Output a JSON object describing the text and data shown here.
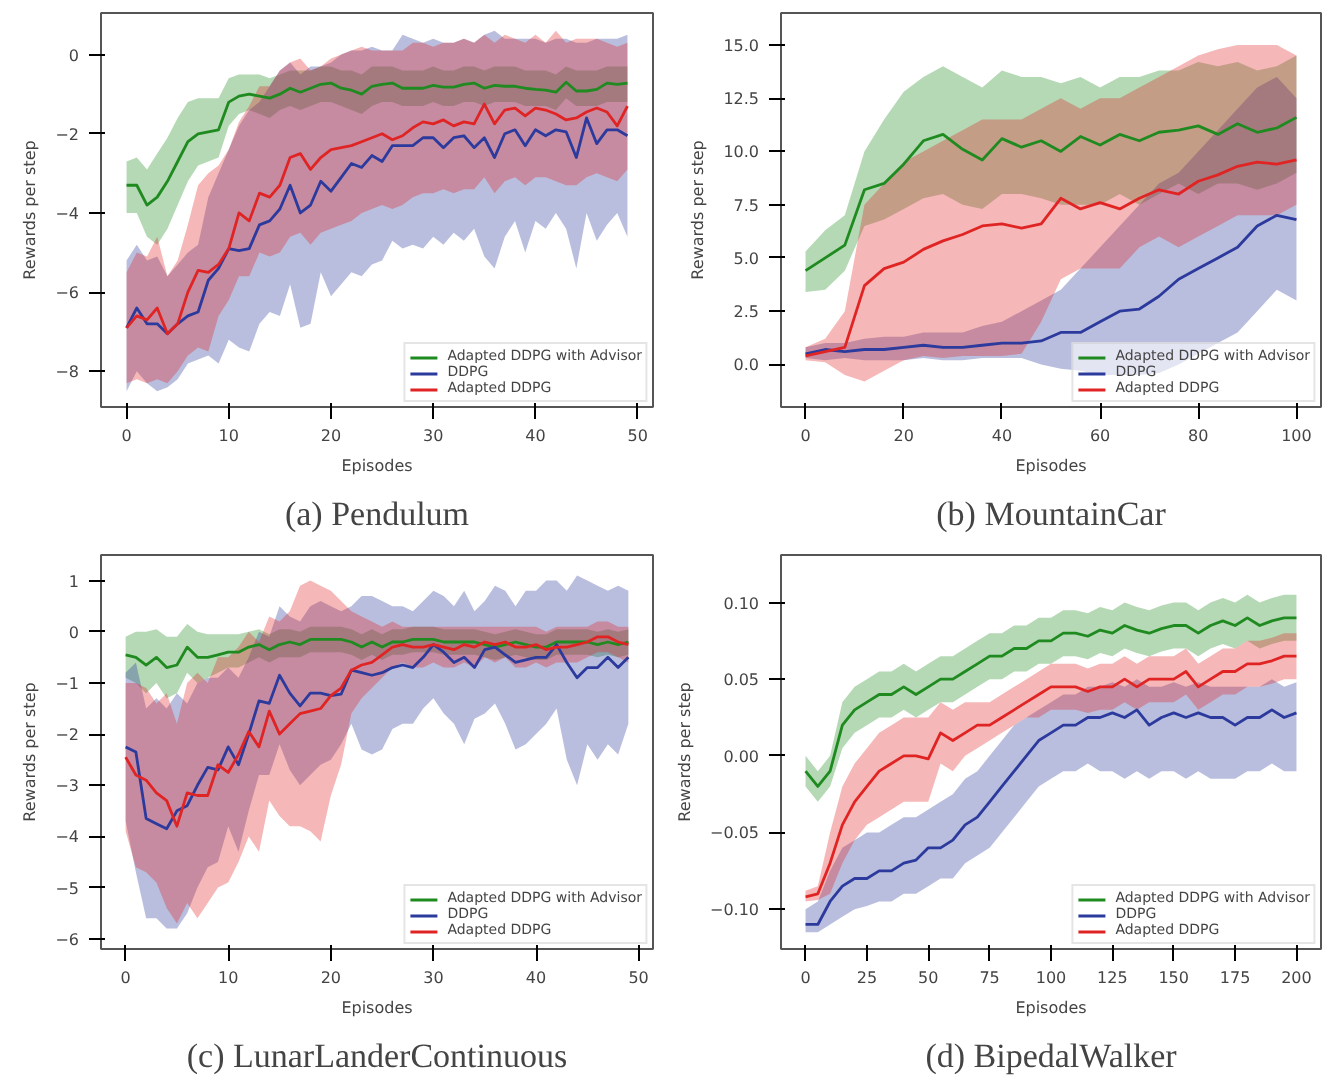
{
  "chart_data": [
    {
      "type": "line",
      "title": "(a) Pendulum",
      "xlabel": "Episodes",
      "ylabel": "Rewards per step",
      "legend": "bottom right",
      "grid": false,
      "x": [
        0,
        1,
        2,
        3,
        4,
        5,
        6,
        7,
        8,
        9,
        10,
        11,
        12,
        13,
        14,
        15,
        16,
        17,
        18,
        19,
        20,
        21,
        22,
        23,
        24,
        25,
        26,
        27,
        28,
        29,
        30,
        31,
        32,
        33,
        34,
        35,
        36,
        37,
        38,
        39,
        40,
        41,
        42,
        43,
        44,
        45,
        46,
        47,
        48,
        49
      ],
      "xlim": [
        -2.5,
        51.5
      ],
      "ylim": [
        -8.9,
        1.05
      ],
      "xticks": [
        0,
        10,
        20,
        30,
        40,
        50
      ],
      "yticks": [
        -8,
        -6,
        -4,
        -2,
        0
      ],
      "series": [
        {
          "name": "Adapted DDPG with Advisor",
          "color": "#1f8a1f",
          "values": [
            -3.3,
            -3.3,
            -3.8,
            -3.6,
            -3.2,
            -2.7,
            -2.2,
            -2.0,
            -1.95,
            -1.9,
            -1.2,
            -1.05,
            -1.0,
            -1.05,
            -1.1,
            -1.0,
            -0.85,
            -0.95,
            -0.85,
            -0.75,
            -0.72,
            -0.85,
            -0.9,
            -1.0,
            -0.8,
            -0.75,
            -0.72,
            -0.85,
            -0.85,
            -0.85,
            -0.78,
            -0.82,
            -0.82,
            -0.75,
            -0.72,
            -0.85,
            -0.78,
            -0.8,
            -0.8,
            -0.85,
            -0.88,
            -0.9,
            -0.95,
            -0.7,
            -0.92,
            -0.92,
            -0.88,
            -0.72,
            -0.75,
            -0.72
          ],
          "lower": [
            -4.0,
            -4.0,
            -4.6,
            -4.8,
            -4.4,
            -3.8,
            -3.2,
            -2.8,
            -2.7,
            -2.6,
            -1.8,
            -1.5,
            -1.4,
            -1.5,
            -1.6,
            -1.4,
            -1.3,
            -1.4,
            -1.3,
            -1.2,
            -1.2,
            -1.3,
            -1.4,
            -1.5,
            -1.3,
            -1.2,
            -1.2,
            -1.3,
            -1.3,
            -1.3,
            -1.2,
            -1.3,
            -1.3,
            -1.2,
            -1.2,
            -1.3,
            -1.2,
            -1.2,
            -1.2,
            -1.3,
            -1.3,
            -1.3,
            -1.4,
            -1.1,
            -1.3,
            -1.3,
            -1.3,
            -1.2,
            -1.2,
            -1.2
          ],
          "upper": [
            -2.7,
            -2.6,
            -2.9,
            -2.5,
            -2.1,
            -1.6,
            -1.2,
            -1.1,
            -1.1,
            -1.1,
            -0.6,
            -0.5,
            -0.5,
            -0.5,
            -0.6,
            -0.5,
            -0.4,
            -0.4,
            -0.4,
            -0.3,
            -0.3,
            -0.4,
            -0.4,
            -0.5,
            -0.3,
            -0.3,
            -0.3,
            -0.4,
            -0.4,
            -0.4,
            -0.3,
            -0.4,
            -0.4,
            -0.3,
            -0.3,
            -0.4,
            -0.3,
            -0.3,
            -0.3,
            -0.4,
            -0.4,
            -0.4,
            -0.5,
            -0.3,
            -0.4,
            -0.4,
            -0.4,
            -0.3,
            -0.3,
            -0.3
          ]
        },
        {
          "name": "DDPG",
          "color": "#2b3a9c",
          "values": [
            -6.9,
            -6.4,
            -6.8,
            -6.8,
            -7.05,
            -6.8,
            -6.6,
            -6.5,
            -5.7,
            -5.4,
            -4.9,
            -4.95,
            -4.9,
            -4.3,
            -4.2,
            -3.9,
            -3.3,
            -4.0,
            -3.8,
            -3.2,
            -3.45,
            -3.1,
            -2.75,
            -2.85,
            -2.55,
            -2.7,
            -2.3,
            -2.3,
            -2.3,
            -2.1,
            -2.1,
            -2.35,
            -2.1,
            -2.05,
            -2.35,
            -2.1,
            -2.6,
            -2.0,
            -1.9,
            -2.3,
            -1.9,
            -2.05,
            -1.9,
            -1.95,
            -2.6,
            -1.6,
            -2.25,
            -1.9,
            -1.9,
            -2.05
          ],
          "lower": [
            -8.5,
            -8.0,
            -8.3,
            -8.5,
            -8.4,
            -8.2,
            -7.8,
            -7.7,
            -7.6,
            -7.8,
            -7.2,
            -7.4,
            -7.5,
            -6.8,
            -6.5,
            -6.6,
            -5.8,
            -6.9,
            -6.8,
            -5.5,
            -6.1,
            -5.8,
            -5.5,
            -5.6,
            -5.3,
            -5.2,
            -4.7,
            -4.9,
            -4.8,
            -4.9,
            -4.6,
            -4.8,
            -4.5,
            -4.7,
            -4.4,
            -5.1,
            -5.4,
            -4.6,
            -4.2,
            -5.0,
            -4.2,
            -4.4,
            -4.0,
            -4.4,
            -5.4,
            -4.0,
            -4.7,
            -4.3,
            -4.0,
            -4.6
          ],
          "upper": [
            -5.2,
            -4.8,
            -5.2,
            -5.1,
            -5.6,
            -5.3,
            -5.0,
            -4.8,
            -3.6,
            -3.0,
            -2.4,
            -1.8,
            -1.4,
            -1.2,
            -0.8,
            -0.4,
            -0.2,
            -0.5,
            -0.3,
            -0.3,
            -0.2,
            0.0,
            0.1,
            0.1,
            0.2,
            0.1,
            0.1,
            0.5,
            0.4,
            0.3,
            0.4,
            0.3,
            0.3,
            0.4,
            0.3,
            0.5,
            0.6,
            0.4,
            0.4,
            0.4,
            0.4,
            0.3,
            0.4,
            0.4,
            0.3,
            0.3,
            0.4,
            0.4,
            0.4,
            0.5
          ]
        },
        {
          "name": "Adapted DDPG",
          "color": "#e02424",
          "values": [
            -6.9,
            -6.6,
            -6.7,
            -6.4,
            -7.05,
            -6.8,
            -6.0,
            -5.45,
            -5.5,
            -5.3,
            -4.9,
            -4.0,
            -4.2,
            -3.5,
            -3.6,
            -3.3,
            -2.6,
            -2.5,
            -2.9,
            -2.6,
            -2.4,
            -2.35,
            -2.3,
            -2.2,
            -2.1,
            -2.0,
            -2.15,
            -2.05,
            -1.85,
            -1.7,
            -1.75,
            -1.65,
            -1.8,
            -1.7,
            -1.75,
            -1.25,
            -1.75,
            -1.4,
            -1.35,
            -1.55,
            -1.35,
            -1.4,
            -1.5,
            -1.65,
            -1.6,
            -1.45,
            -1.35,
            -1.45,
            -1.8,
            -1.3
          ],
          "lower": [
            -8.3,
            -8.2,
            -8.3,
            -8.2,
            -8.3,
            -8.0,
            -7.6,
            -7.4,
            -7.5,
            -6.6,
            -6.2,
            -5.6,
            -5.6,
            -5.0,
            -5.1,
            -5.0,
            -4.6,
            -4.5,
            -4.8,
            -4.5,
            -4.4,
            -4.3,
            -4.2,
            -4.0,
            -3.9,
            -3.8,
            -3.9,
            -3.8,
            -3.6,
            -3.5,
            -3.5,
            -3.4,
            -3.5,
            -3.4,
            -3.4,
            -3.1,
            -3.5,
            -3.2,
            -3.1,
            -3.3,
            -3.1,
            -3.1,
            -3.2,
            -3.3,
            -3.3,
            -3.1,
            -3.0,
            -3.1,
            -3.2,
            -2.9
          ],
          "upper": [
            -5.5,
            -5.0,
            -5.1,
            -4.6,
            -5.6,
            -5.2,
            -4.3,
            -3.3,
            -3.0,
            -2.8,
            -2.4,
            -1.7,
            -1.3,
            -0.8,
            -0.8,
            -0.4,
            -0.2,
            -0.1,
            -0.4,
            -0.3,
            -0.1,
            0.0,
            0.1,
            0.2,
            0.1,
            0.1,
            0.1,
            0.1,
            0.3,
            0.3,
            0.2,
            0.3,
            0.3,
            0.4,
            0.3,
            0.5,
            0.3,
            0.5,
            0.4,
            0.3,
            0.5,
            0.3,
            0.6,
            0.3,
            0.4,
            0.4,
            0.4,
            0.3,
            0.2,
            0.3
          ]
        }
      ]
    },
    {
      "type": "line",
      "title": "(b) MountainCar",
      "xlabel": "Episodes",
      "ylabel": "Rewards per step",
      "legend": "bottom right",
      "grid": false,
      "x": [
        0,
        4,
        8,
        12,
        16,
        20,
        24,
        28,
        32,
        36,
        40,
        44,
        48,
        52,
        56,
        60,
        64,
        68,
        72,
        76,
        80,
        84,
        88,
        92,
        96,
        100
      ],
      "xlim": [
        -5,
        105
      ],
      "ylim": [
        -2.0,
        16.5
      ],
      "xticks": [
        0,
        20,
        40,
        60,
        80,
        100
      ],
      "yticks": [
        {
          "value": 0,
          "label": "0.0"
        },
        {
          "value": 2.5,
          "label": "2.5"
        },
        {
          "value": 5,
          "label": "5.0"
        },
        {
          "value": 7.5,
          "label": "7.5"
        },
        {
          "value": 10,
          "label": "10.0"
        },
        {
          "value": 12.5,
          "label": "12.5"
        },
        {
          "value": 15,
          "label": "15.0"
        }
      ],
      "series": [
        {
          "name": "Adapted DDPG with Advisor",
          "color": "#1f8a1f",
          "values": [
            4.4,
            5.0,
            5.6,
            8.2,
            8.5,
            9.4,
            10.5,
            10.8,
            10.1,
            9.6,
            10.6,
            10.2,
            10.5,
            10.0,
            10.7,
            10.3,
            10.8,
            10.5,
            10.9,
            11.0,
            11.2,
            10.8,
            11.3,
            10.9,
            11.1,
            11.6
          ],
          "lower": [
            3.4,
            3.5,
            4.4,
            6.5,
            6.8,
            7.3,
            7.8,
            8.0,
            7.5,
            7.3,
            8.0,
            8.0,
            7.8,
            7.5,
            7.5,
            7.5,
            8.0,
            7.5,
            8.0,
            8.5,
            8.0,
            8.5,
            8.5,
            8.2,
            8.5,
            9.0
          ],
          "upper": [
            5.3,
            6.3,
            7.0,
            10.0,
            11.5,
            12.8,
            13.5,
            14.0,
            13.5,
            13.0,
            13.8,
            13.5,
            13.5,
            13.2,
            13.5,
            13.0,
            13.5,
            13.5,
            13.8,
            13.8,
            14.2,
            14.0,
            14.2,
            13.8,
            14.0,
            14.5
          ]
        },
        {
          "name": "DDPG",
          "color": "#2b3a9c",
          "values": [
            0.5,
            0.7,
            0.6,
            0.7,
            0.7,
            0.8,
            0.9,
            0.8,
            0.8,
            0.9,
            1.0,
            1.0,
            1.1,
            1.5,
            1.5,
            2.0,
            2.5,
            2.6,
            3.2,
            4.0,
            4.5,
            5.0,
            5.5,
            6.5,
            7.0,
            6.8
          ],
          "lower": [
            0.3,
            0.2,
            0.3,
            0.2,
            0.2,
            0.2,
            0.3,
            0.2,
            0.2,
            0.3,
            0.3,
            0.3,
            0.0,
            -0.2,
            -0.3,
            -0.5,
            -0.5,
            -0.5,
            -0.4,
            0.0,
            0.5,
            1.0,
            1.5,
            2.5,
            3.5,
            3.0
          ],
          "upper": [
            0.8,
            1.0,
            1.0,
            1.2,
            1.3,
            1.3,
            1.5,
            1.5,
            1.5,
            1.8,
            2.0,
            2.5,
            3.0,
            3.5,
            4.5,
            5.5,
            6.5,
            7.5,
            8.5,
            9.0,
            10.0,
            11.0,
            12.0,
            13.0,
            13.5,
            12.5
          ]
        },
        {
          "name": "Adapted DDPG",
          "color": "#e02424",
          "values": [
            0.4,
            0.6,
            0.8,
            3.7,
            4.5,
            4.8,
            5.4,
            5.8,
            6.1,
            6.5,
            6.6,
            6.4,
            6.6,
            7.8,
            7.3,
            7.6,
            7.3,
            7.8,
            8.2,
            8.0,
            8.6,
            8.9,
            9.3,
            9.5,
            9.4,
            9.6
          ],
          "lower": [
            0.2,
            0.1,
            -0.5,
            -0.8,
            -0.3,
            0.2,
            0.4,
            0.3,
            0.4,
            0.4,
            0.4,
            0.5,
            2.0,
            4.0,
            4.5,
            4.5,
            4.5,
            5.5,
            6.0,
            5.5,
            6.0,
            6.5,
            7.0,
            7.0,
            7.0,
            7.5
          ],
          "upper": [
            0.8,
            1.2,
            2.5,
            7.5,
            8.5,
            9.5,
            10.0,
            10.5,
            11.0,
            11.5,
            11.5,
            11.5,
            12.0,
            12.5,
            12.0,
            12.5,
            12.5,
            13.0,
            13.5,
            14.0,
            14.5,
            14.8,
            15.0,
            15.0,
            15.0,
            14.5
          ]
        }
      ]
    },
    {
      "type": "line",
      "title": "(c) LunarLanderContinuous",
      "xlabel": "Episodes",
      "ylabel": "Rewards per step",
      "legend": "bottom right",
      "grid": false,
      "x": [
        0,
        1,
        2,
        3,
        4,
        5,
        6,
        7,
        8,
        9,
        10,
        11,
        12,
        13,
        14,
        15,
        16,
        17,
        18,
        19,
        20,
        21,
        22,
        23,
        24,
        25,
        26,
        27,
        28,
        29,
        30,
        31,
        32,
        33,
        34,
        35,
        36,
        37,
        38,
        39,
        40,
        41,
        42,
        43,
        44,
        45,
        46,
        47,
        48,
        49
      ],
      "xlim": [
        -2.4,
        51.4
      ],
      "ylim": [
        -6.2,
        1.5
      ],
      "xticks": [
        0,
        10,
        20,
        30,
        40,
        50
      ],
      "yticks": [
        -6,
        -5,
        -4,
        -3,
        -2,
        -1,
        0,
        1
      ],
      "series": [
        {
          "name": "Adapted DDPG with Advisor",
          "color": "#1f8a1f",
          "values": [
            -0.45,
            -0.5,
            -0.65,
            -0.5,
            -0.7,
            -0.65,
            -0.3,
            -0.5,
            -0.5,
            -0.45,
            -0.4,
            -0.4,
            -0.3,
            -0.25,
            -0.35,
            -0.25,
            -0.2,
            -0.25,
            -0.15,
            -0.15,
            -0.15,
            -0.15,
            -0.2,
            -0.3,
            -0.2,
            -0.3,
            -0.2,
            -0.2,
            -0.15,
            -0.15,
            -0.15,
            -0.2,
            -0.2,
            -0.2,
            -0.2,
            -0.25,
            -0.3,
            -0.25,
            -0.2,
            -0.25,
            -0.3,
            -0.3,
            -0.2,
            -0.2,
            -0.2,
            -0.2,
            -0.25,
            -0.2,
            -0.25,
            -0.2
          ],
          "lower": [
            -0.9,
            -1.0,
            -1.2,
            -1.0,
            -1.3,
            -1.2,
            -0.8,
            -1.0,
            -0.9,
            -0.8,
            -0.7,
            -0.7,
            -0.6,
            -0.5,
            -0.6,
            -0.5,
            -0.5,
            -0.5,
            -0.4,
            -0.4,
            -0.4,
            -0.4,
            -0.45,
            -0.55,
            -0.45,
            -0.55,
            -0.45,
            -0.45,
            -0.4,
            -0.4,
            -0.4,
            -0.45,
            -0.45,
            -0.45,
            -0.45,
            -0.5,
            -0.55,
            -0.5,
            -0.45,
            -0.5,
            -0.55,
            -0.55,
            -0.45,
            -0.45,
            -0.45,
            -0.45,
            -0.5,
            -0.45,
            -0.5,
            -0.45
          ],
          "upper": [
            -0.1,
            0.0,
            0.0,
            0.05,
            -0.1,
            -0.1,
            0.15,
            0.0,
            -0.05,
            -0.05,
            -0.05,
            -0.05,
            0.0,
            0.05,
            -0.05,
            0.05,
            0.05,
            0.0,
            0.1,
            0.1,
            0.1,
            0.1,
            0.05,
            -0.05,
            0.05,
            -0.05,
            0.05,
            0.05,
            0.1,
            0.1,
            0.1,
            0.05,
            0.05,
            0.05,
            0.05,
            0.0,
            -0.05,
            0.0,
            0.05,
            0.0,
            -0.05,
            -0.05,
            0.05,
            0.05,
            0.05,
            0.05,
            0.0,
            0.05,
            0.0,
            0.05
          ]
        },
        {
          "name": "DDPG",
          "color": "#2b3a9c",
          "values": [
            -2.25,
            -2.35,
            -3.65,
            -3.75,
            -3.85,
            -3.5,
            -3.4,
            -3.0,
            -2.65,
            -2.7,
            -2.25,
            -2.6,
            -2.0,
            -1.35,
            -1.4,
            -0.85,
            -1.2,
            -1.45,
            -1.2,
            -1.2,
            -1.25,
            -1.22,
            -0.75,
            -0.8,
            -0.85,
            -0.8,
            -0.7,
            -0.65,
            -0.7,
            -0.5,
            -0.25,
            -0.4,
            -0.6,
            -0.5,
            -0.7,
            -0.35,
            -0.3,
            -0.45,
            -0.6,
            -0.55,
            -0.5,
            -0.5,
            -0.25,
            -0.6,
            -0.9,
            -0.7,
            -0.7,
            -0.5,
            -0.7,
            -0.5
          ],
          "lower": [
            -3.7,
            -4.7,
            -5.6,
            -5.6,
            -5.8,
            -5.8,
            -5.5,
            -5.0,
            -4.6,
            -4.5,
            -3.8,
            -4.3,
            -3.5,
            -2.8,
            -2.8,
            -2.2,
            -2.7,
            -3.0,
            -2.8,
            -2.6,
            -2.5,
            -2.2,
            -1.8,
            -2.3,
            -2.4,
            -2.3,
            -1.9,
            -1.8,
            -1.8,
            -1.5,
            -1.3,
            -1.6,
            -1.8,
            -2.2,
            -1.7,
            -1.6,
            -1.4,
            -1.8,
            -2.3,
            -2.2,
            -2.0,
            -1.8,
            -1.5,
            -2.5,
            -3.0,
            -2.2,
            -2.5,
            -2.2,
            -2.4,
            -1.8
          ],
          "upper": [
            -0.8,
            -0.6,
            -1.5,
            -1.3,
            -1.5,
            -1.2,
            -1.4,
            -1.0,
            -0.9,
            -0.9,
            -0.7,
            -0.9,
            -0.5,
            0.0,
            -0.1,
            0.5,
            0.3,
            0.2,
            0.5,
            0.6,
            0.5,
            0.4,
            0.5,
            0.7,
            0.7,
            0.6,
            0.5,
            0.5,
            0.4,
            0.6,
            0.8,
            0.7,
            0.5,
            0.8,
            0.4,
            0.6,
            0.9,
            0.8,
            0.5,
            0.8,
            0.8,
            1.0,
            1.0,
            0.8,
            1.1,
            1.0,
            0.9,
            0.8,
            0.9,
            0.8
          ]
        },
        {
          "name": "Adapted DDPG",
          "color": "#e02424",
          "values": [
            -2.45,
            -2.8,
            -2.9,
            -3.15,
            -3.3,
            -3.8,
            -3.15,
            -3.2,
            -3.2,
            -2.6,
            -2.75,
            -2.4,
            -1.95,
            -2.25,
            -1.55,
            -2.0,
            -1.8,
            -1.6,
            -1.55,
            -1.5,
            -1.25,
            -1.1,
            -0.75,
            -0.65,
            -0.6,
            -0.45,
            -0.3,
            -0.25,
            -0.3,
            -0.3,
            -0.25,
            -0.3,
            -0.35,
            -0.25,
            -0.3,
            -0.2,
            -0.25,
            -0.2,
            -0.3,
            -0.3,
            -0.25,
            -0.35,
            -0.3,
            -0.3,
            -0.25,
            -0.2,
            -0.1,
            -0.1,
            -0.2,
            -0.25
          ],
          "lower": [
            -3.9,
            -4.6,
            -4.7,
            -4.9,
            -5.4,
            -5.7,
            -5.3,
            -5.6,
            -5.3,
            -5.0,
            -4.9,
            -4.5,
            -4.0,
            -4.3,
            -3.3,
            -3.6,
            -3.8,
            -3.8,
            -3.9,
            -4.1,
            -3.2,
            -2.6,
            -1.6,
            -1.3,
            -1.1,
            -0.9,
            -0.7,
            -0.6,
            -0.7,
            -0.7,
            -0.6,
            -0.7,
            -0.7,
            -0.6,
            -0.7,
            -0.5,
            -0.6,
            -0.5,
            -0.7,
            -0.7,
            -0.6,
            -0.7,
            -0.6,
            -0.6,
            -0.6,
            -0.5,
            -0.4,
            -0.4,
            -0.5,
            -0.6
          ],
          "upper": [
            -1.0,
            -1.0,
            -1.1,
            -1.4,
            -1.2,
            -1.8,
            -1.0,
            -0.8,
            -1.0,
            -0.5,
            -0.5,
            -0.3,
            0.0,
            -0.2,
            0.3,
            0.2,
            0.4,
            0.9,
            1.0,
            0.9,
            0.8,
            0.6,
            0.4,
            0.3,
            0.2,
            0.1,
            0.2,
            0.1,
            0.1,
            0.1,
            0.1,
            0.1,
            0.1,
            0.1,
            0.1,
            0.1,
            0.1,
            0.1,
            0.1,
            0.1,
            0.1,
            0.0,
            0.1,
            0.1,
            0.1,
            0.1,
            0.2,
            0.2,
            0.1,
            0.1
          ]
        }
      ]
    },
    {
      "type": "line",
      "title": "(d) BipedalWalker",
      "xlabel": "Episodes",
      "ylabel": "Rewards per step",
      "legend": "bottom right",
      "grid": false,
      "x": [
        0,
        5,
        10,
        15,
        20,
        25,
        30,
        35,
        40,
        45,
        50,
        55,
        60,
        65,
        70,
        75,
        80,
        85,
        90,
        95,
        100,
        105,
        110,
        115,
        120,
        125,
        130,
        135,
        140,
        145,
        150,
        155,
        160,
        165,
        170,
        175,
        180,
        185,
        190,
        195,
        200
      ],
      "xlim": [
        -10,
        210
      ],
      "ylim": [
        -0.126,
        0.131
      ],
      "xticks": [
        0,
        25,
        50,
        75,
        100,
        125,
        150,
        175,
        200
      ],
      "yticks": [
        {
          "value": -0.1,
          "label": "−0.10"
        },
        {
          "value": -0.05,
          "label": "−0.05"
        },
        {
          "value": 0,
          "label": "0.00"
        },
        {
          "value": 0.05,
          "label": "0.05"
        },
        {
          "value": 0.1,
          "label": "0.10"
        }
      ],
      "series": [
        {
          "name": "Adapted DDPG with Advisor",
          "color": "#1f8a1f",
          "values": [
            -0.01,
            -0.02,
            -0.01,
            0.02,
            0.03,
            0.035,
            0.04,
            0.04,
            0.045,
            0.04,
            0.045,
            0.05,
            0.05,
            0.055,
            0.06,
            0.065,
            0.065,
            0.07,
            0.07,
            0.075,
            0.075,
            0.08,
            0.08,
            0.078,
            0.082,
            0.08,
            0.085,
            0.082,
            0.08,
            0.083,
            0.085,
            0.085,
            0.08,
            0.085,
            0.088,
            0.085,
            0.09,
            0.085,
            0.088,
            0.09,
            0.09
          ],
          "lower": [
            -0.02,
            -0.03,
            -0.02,
            0.005,
            0.015,
            0.02,
            0.025,
            0.025,
            0.03,
            0.025,
            0.03,
            0.035,
            0.035,
            0.04,
            0.045,
            0.05,
            0.05,
            0.055,
            0.055,
            0.06,
            0.06,
            0.065,
            0.065,
            0.063,
            0.067,
            0.065,
            0.07,
            0.067,
            0.065,
            0.068,
            0.07,
            0.07,
            0.065,
            0.07,
            0.073,
            0.07,
            0.075,
            0.07,
            0.073,
            0.075,
            0.075
          ],
          "upper": [
            0.0,
            -0.01,
            0.0,
            0.035,
            0.045,
            0.05,
            0.055,
            0.055,
            0.06,
            0.055,
            0.06,
            0.065,
            0.065,
            0.07,
            0.075,
            0.08,
            0.08,
            0.085,
            0.085,
            0.09,
            0.09,
            0.095,
            0.095,
            0.093,
            0.097,
            0.095,
            0.1,
            0.097,
            0.095,
            0.098,
            0.1,
            0.1,
            0.095,
            0.1,
            0.103,
            0.1,
            0.105,
            0.1,
            0.103,
            0.105,
            0.105
          ]
        },
        {
          "name": "DDPG",
          "color": "#2b3a9c",
          "values": [
            -0.11,
            -0.11,
            -0.095,
            -0.085,
            -0.08,
            -0.08,
            -0.075,
            -0.075,
            -0.07,
            -0.068,
            -0.06,
            -0.06,
            -0.055,
            -0.045,
            -0.04,
            -0.03,
            -0.02,
            -0.01,
            0.0,
            0.01,
            0.015,
            0.02,
            0.02,
            0.025,
            0.025,
            0.028,
            0.025,
            0.03,
            0.02,
            0.025,
            0.028,
            0.025,
            0.028,
            0.025,
            0.025,
            0.02,
            0.025,
            0.025,
            0.03,
            0.025,
            0.028
          ],
          "lower": [
            -0.115,
            -0.115,
            -0.11,
            -0.105,
            -0.1,
            -0.098,
            -0.095,
            -0.095,
            -0.09,
            -0.09,
            -0.085,
            -0.08,
            -0.08,
            -0.07,
            -0.065,
            -0.06,
            -0.05,
            -0.04,
            -0.03,
            -0.02,
            -0.015,
            -0.01,
            -0.01,
            -0.005,
            -0.01,
            -0.01,
            -0.015,
            -0.01,
            -0.015,
            -0.01,
            -0.01,
            -0.015,
            -0.01,
            -0.015,
            -0.015,
            -0.015,
            -0.01,
            -0.01,
            -0.005,
            -0.01,
            -0.01
          ],
          "upper": [
            -0.1,
            -0.095,
            -0.075,
            -0.06,
            -0.055,
            -0.05,
            -0.05,
            -0.045,
            -0.04,
            -0.04,
            -0.035,
            -0.03,
            -0.025,
            -0.015,
            -0.01,
            0.0,
            0.01,
            0.02,
            0.025,
            0.03,
            0.035,
            0.04,
            0.04,
            0.045,
            0.045,
            0.048,
            0.045,
            0.05,
            0.045,
            0.045,
            0.048,
            0.045,
            0.048,
            0.045,
            0.045,
            0.045,
            0.045,
            0.045,
            0.05,
            0.045,
            0.048
          ]
        },
        {
          "name": "Adapted DDPG",
          "color": "#e02424",
          "values": [
            -0.092,
            -0.09,
            -0.07,
            -0.045,
            -0.03,
            -0.02,
            -0.01,
            -0.005,
            0.0,
            0.0,
            -0.002,
            0.015,
            0.01,
            0.015,
            0.02,
            0.02,
            0.025,
            0.03,
            0.035,
            0.04,
            0.045,
            0.045,
            0.045,
            0.042,
            0.045,
            0.045,
            0.05,
            0.045,
            0.05,
            0.05,
            0.05,
            0.055,
            0.045,
            0.05,
            0.055,
            0.055,
            0.06,
            0.06,
            0.062,
            0.065,
            0.065
          ],
          "lower": [
            -0.095,
            -0.094,
            -0.09,
            -0.07,
            -0.055,
            -0.045,
            -0.04,
            -0.035,
            -0.03,
            -0.03,
            -0.03,
            -0.005,
            -0.01,
            0.0,
            0.005,
            0.01,
            0.015,
            0.02,
            0.025,
            0.025,
            0.03,
            0.03,
            0.03,
            0.028,
            0.03,
            0.03,
            0.035,
            0.03,
            0.035,
            0.035,
            0.035,
            0.04,
            0.03,
            0.035,
            0.04,
            0.04,
            0.045,
            0.045,
            0.047,
            0.05,
            0.05
          ],
          "upper": [
            -0.088,
            -0.085,
            -0.05,
            -0.02,
            -0.005,
            0.005,
            0.015,
            0.02,
            0.025,
            0.025,
            0.025,
            0.035,
            0.03,
            0.035,
            0.035,
            0.035,
            0.04,
            0.045,
            0.05,
            0.055,
            0.06,
            0.06,
            0.06,
            0.057,
            0.06,
            0.06,
            0.065,
            0.06,
            0.065,
            0.065,
            0.065,
            0.07,
            0.06,
            0.065,
            0.07,
            0.07,
            0.075,
            0.075,
            0.077,
            0.08,
            0.08
          ]
        }
      ]
    }
  ]
}
